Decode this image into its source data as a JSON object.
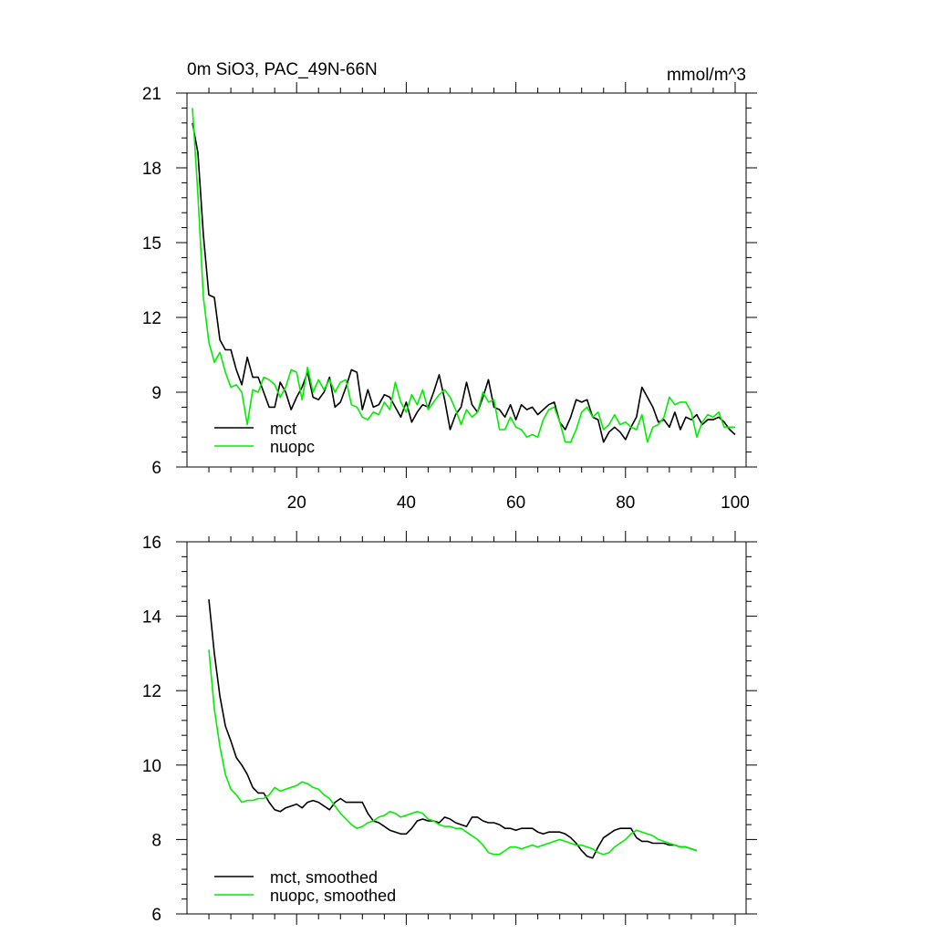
{
  "chart_data": [
    {
      "type": "line",
      "title": "0m SiO3, PAC_49N-66N",
      "units": "mmol/m^3",
      "xlim": [
        0,
        102
      ],
      "ylim": [
        6,
        21
      ],
      "xticks": [
        20,
        40,
        60,
        80,
        100
      ],
      "yticks": [
        6,
        9,
        12,
        15,
        18,
        21
      ],
      "show_x_tick_labels": true,
      "legend": {
        "position": "bottom-left"
      },
      "series": [
        {
          "name": "mct",
          "color": "#000000",
          "x_start": 1,
          "values": [
            19.8,
            18.6,
            15.3,
            12.9,
            12.8,
            11.1,
            10.7,
            10.7,
            9.9,
            9.3,
            10.4,
            9.6,
            9.6,
            9.0,
            8.4,
            8.4,
            9.4,
            9.0,
            8.3,
            8.8,
            9.2,
            9.8,
            8.8,
            8.7,
            9.0,
            9.6,
            8.4,
            8.6,
            9.2,
            9.9,
            9.8,
            8.3,
            9.1,
            8.4,
            8.5,
            8.9,
            8.8,
            8.4,
            8.0,
            8.6,
            7.8,
            8.2,
            8.5,
            8.4,
            9.0,
            9.7,
            8.7,
            7.5,
            8.1,
            8.4,
            9.4,
            8.5,
            8.2,
            8.8,
            9.5,
            8.4,
            8.3,
            8.0,
            8.5,
            7.9,
            8.5,
            8.3,
            8.4,
            8.1,
            8.3,
            8.5,
            8.6,
            7.8,
            7.5,
            8.0,
            8.7,
            8.6,
            8.7,
            8.0,
            7.9,
            7.0,
            7.4,
            7.6,
            7.4,
            7.1,
            7.6,
            8.0,
            9.2,
            8.8,
            8.4,
            7.8,
            7.9,
            7.6,
            8.2,
            7.5,
            8.0,
            7.9,
            8.1,
            7.7,
            7.9,
            7.9,
            8.0,
            7.8,
            7.5,
            7.3
          ]
        },
        {
          "name": "nuopc",
          "color": "#00ee00",
          "x_start": 1,
          "values": [
            20.4,
            16.9,
            12.8,
            11.0,
            10.2,
            10.6,
            9.8,
            9.2,
            9.3,
            9.0,
            7.7,
            9.1,
            9.0,
            9.6,
            9.5,
            9.3,
            8.8,
            9.2,
            9.9,
            9.8,
            8.7,
            10.0,
            9.0,
            9.5,
            9.1,
            9.5,
            9.0,
            9.4,
            9.5,
            8.5,
            8.4,
            8.0,
            7.9,
            8.2,
            8.1,
            8.6,
            8.3,
            9.4,
            8.6,
            8.2,
            8.9,
            8.5,
            9.1,
            8.3,
            8.6,
            8.9,
            9.1,
            8.8,
            8.3,
            7.7,
            8.3,
            8.0,
            8.2,
            9.0,
            8.6,
            8.7,
            7.5,
            7.5,
            8.0,
            7.6,
            7.5,
            7.2,
            7.3,
            7.2,
            7.9,
            8.3,
            8.4,
            7.8,
            7.0,
            7.0,
            7.5,
            8.2,
            8.4,
            8.0,
            8.2,
            7.5,
            7.7,
            8.1,
            7.7,
            7.8,
            7.6,
            7.5,
            8.1,
            7.0,
            7.6,
            7.7,
            8.0,
            8.8,
            8.5,
            8.6,
            8.6,
            8.2,
            7.2,
            7.8,
            8.1,
            8.0,
            8.2,
            7.6,
            7.6,
            7.6
          ]
        }
      ]
    },
    {
      "type": "line",
      "title": "",
      "xlim": [
        0,
        102
      ],
      "ylim": [
        6,
        16
      ],
      "xticks": [
        20,
        40,
        60,
        80,
        100
      ],
      "yticks": [
        6,
        8,
        10,
        12,
        14,
        16
      ],
      "show_x_tick_labels": false,
      "legend": {
        "position": "bottom-left"
      },
      "series": [
        {
          "name": "mct, smoothed",
          "color": "#000000",
          "x_start": 4,
          "values": [
            14.45,
            13.0,
            11.85,
            11.05,
            10.65,
            10.2,
            10.0,
            9.75,
            9.4,
            9.25,
            9.25,
            9.0,
            8.8,
            8.75,
            8.85,
            8.9,
            8.95,
            8.85,
            9.0,
            9.05,
            9.0,
            8.9,
            8.8,
            9.0,
            9.1,
            9.0,
            9.0,
            9.0,
            9.0,
            8.7,
            8.5,
            8.45,
            8.35,
            8.25,
            8.2,
            8.15,
            8.15,
            8.3,
            8.5,
            8.55,
            8.5,
            8.5,
            8.45,
            8.6,
            8.55,
            8.45,
            8.4,
            8.35,
            8.6,
            8.6,
            8.5,
            8.45,
            8.45,
            8.4,
            8.3,
            8.3,
            8.25,
            8.3,
            8.3,
            8.3,
            8.2,
            8.15,
            8.2,
            8.2,
            8.2,
            8.15,
            8.05,
            7.9,
            7.7,
            7.55,
            7.5,
            7.8,
            8.05,
            8.15,
            8.25,
            8.3,
            8.3,
            8.3,
            8.05,
            7.95,
            7.95,
            7.9,
            7.9,
            7.9,
            7.85,
            7.85,
            7.8,
            7.8,
            7.75,
            7.7
          ]
        },
        {
          "name": "nuopc, smoothed",
          "color": "#00ee00",
          "x_start": 4,
          "values": [
            13.1,
            11.5,
            10.5,
            9.75,
            9.35,
            9.2,
            9.0,
            9.05,
            9.05,
            9.1,
            9.1,
            9.2,
            9.4,
            9.3,
            9.35,
            9.4,
            9.45,
            9.55,
            9.5,
            9.4,
            9.35,
            9.2,
            9.1,
            8.9,
            8.7,
            8.55,
            8.4,
            8.3,
            8.35,
            8.45,
            8.5,
            8.6,
            8.65,
            8.75,
            8.7,
            8.6,
            8.65,
            8.7,
            8.75,
            8.7,
            8.55,
            8.5,
            8.4,
            8.35,
            8.35,
            8.3,
            8.3,
            8.2,
            8.1,
            8.0,
            7.85,
            7.65,
            7.6,
            7.6,
            7.7,
            7.8,
            7.8,
            7.75,
            7.8,
            7.85,
            7.8,
            7.85,
            7.9,
            7.95,
            8.0,
            7.95,
            7.9,
            7.85,
            7.85,
            7.8,
            7.75,
            7.65,
            7.6,
            7.65,
            7.8,
            7.9,
            8.0,
            8.15,
            8.25,
            8.2,
            8.15,
            8.1,
            8.0,
            7.95,
            7.9,
            7.85,
            7.8,
            7.8,
            7.75,
            7.7
          ]
        }
      ]
    }
  ]
}
